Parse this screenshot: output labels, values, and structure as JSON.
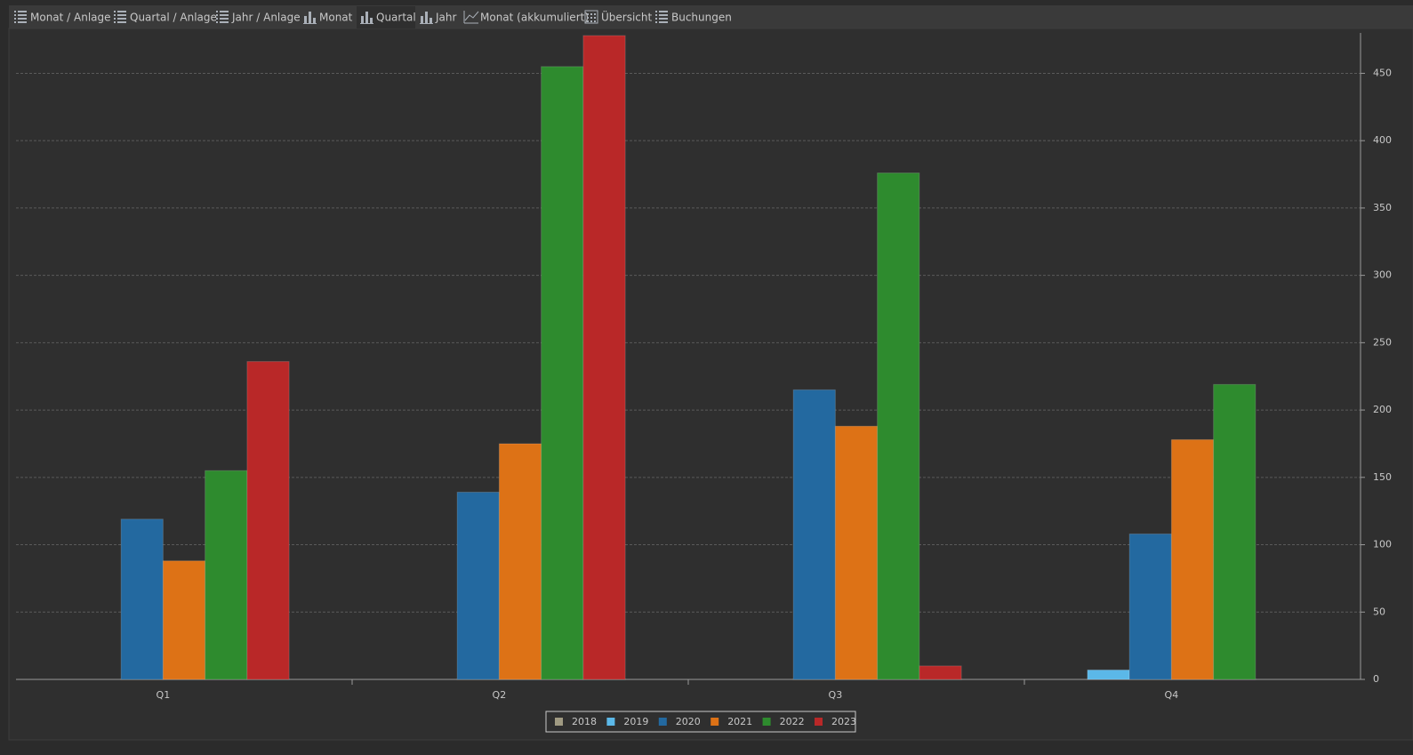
{
  "tabs": [
    {
      "label": "Monat / Anlage",
      "active": false
    },
    {
      "label": "Quartal / Anlage",
      "active": false
    },
    {
      "label": "Jahr / Anlage",
      "active": false
    },
    {
      "label": "Monat",
      "active": false
    },
    {
      "label": "Quartal",
      "active": true
    },
    {
      "label": "Jahr",
      "active": false
    },
    {
      "label": "Monat (akkumuliert)",
      "active": false
    },
    {
      "label": "Übersicht",
      "active": false
    },
    {
      "label": "Buchungen",
      "active": false
    }
  ],
  "chart_data": {
    "type": "bar",
    "categories": [
      "Q1",
      "Q2",
      "Q3",
      "Q4"
    ],
    "series": [
      {
        "name": "2018",
        "color": "#a09a82",
        "values": [
          null,
          null,
          null,
          null
        ]
      },
      {
        "name": "2019",
        "color": "#5bb8e8",
        "values": [
          null,
          null,
          null,
          7
        ]
      },
      {
        "name": "2020",
        "color": "#2369a0",
        "values": [
          119,
          139,
          215,
          108
        ]
      },
      {
        "name": "2021",
        "color": "#dd7216",
        "values": [
          88,
          175,
          188,
          178
        ]
      },
      {
        "name": "2022",
        "color": "#2e8b2e",
        "values": [
          155,
          455,
          376,
          219
        ]
      },
      {
        "name": "2023",
        "color": "#b92828",
        "values": [
          236,
          478,
          10,
          null
        ]
      }
    ],
    "ylim": [
      0,
      480
    ],
    "yticks": [
      0,
      50,
      100,
      150,
      200,
      250,
      300,
      350,
      400,
      450
    ],
    "grid": true,
    "legend": "bottom"
  }
}
